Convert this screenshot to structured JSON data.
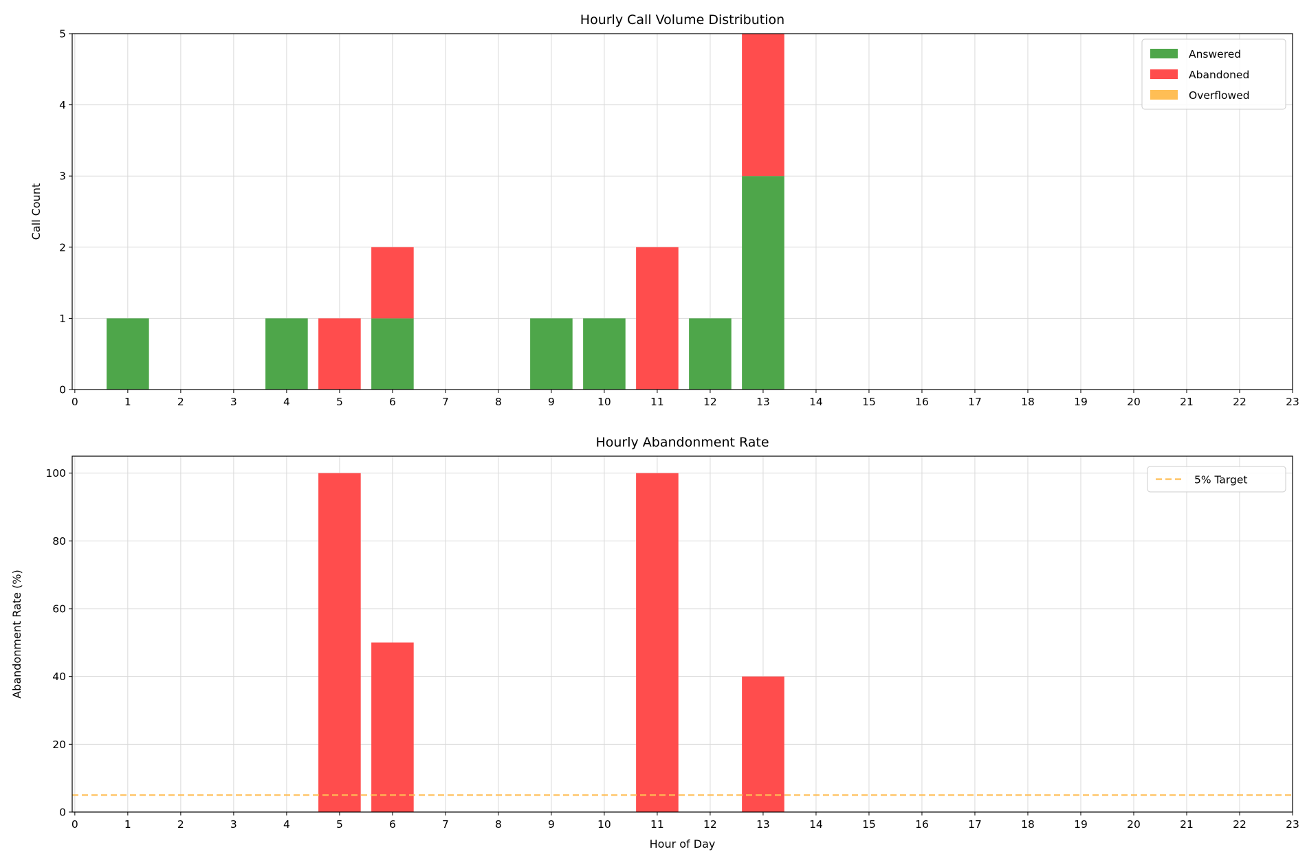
{
  "chart_data": [
    {
      "type": "bar",
      "stacked": true,
      "title": "Hourly Call Volume Distribution",
      "xlabel": "",
      "ylabel": "Call Count",
      "x": [
        0,
        1,
        2,
        3,
        4,
        5,
        6,
        7,
        8,
        9,
        10,
        11,
        12,
        13,
        14,
        15,
        16,
        17,
        18,
        19,
        20,
        21,
        22,
        23
      ],
      "xlim": [
        -0.05,
        23
      ],
      "ylim": [
        0,
        5
      ],
      "yticks": [
        0,
        1,
        2,
        3,
        4,
        5
      ],
      "grid": true,
      "legend_position": "top-right",
      "series": [
        {
          "name": "Answered",
          "color": "#4ea64a",
          "values": [
            0,
            1,
            0,
            0,
            1,
            0,
            1,
            0,
            0,
            1,
            1,
            0,
            1,
            3,
            0,
            0,
            0,
            0,
            0,
            0,
            0,
            0,
            0,
            0
          ]
        },
        {
          "name": "Abandoned",
          "color": "#ff4d4d",
          "values": [
            0,
            0,
            0,
            0,
            0,
            1,
            1,
            0,
            0,
            0,
            0,
            2,
            0,
            2,
            0,
            0,
            0,
            0,
            0,
            0,
            0,
            0,
            0,
            0
          ]
        },
        {
          "name": "Overflowed",
          "color": "#ffbe55",
          "values": [
            0,
            0,
            0,
            0,
            0,
            0,
            0,
            0,
            0,
            0,
            0,
            0,
            0,
            0,
            0,
            0,
            0,
            0,
            0,
            0,
            0,
            0,
            0,
            0
          ]
        }
      ]
    },
    {
      "type": "bar",
      "title": "Hourly Abandonment Rate",
      "xlabel": "Hour of Day",
      "ylabel": "Abandonment Rate (%)",
      "x": [
        0,
        1,
        2,
        3,
        4,
        5,
        6,
        7,
        8,
        9,
        10,
        11,
        12,
        13,
        14,
        15,
        16,
        17,
        18,
        19,
        20,
        21,
        22,
        23
      ],
      "xlim": [
        -0.05,
        23
      ],
      "ylim": [
        0,
        105
      ],
      "yticks": [
        0,
        20,
        40,
        60,
        80,
        100
      ],
      "grid": true,
      "legend_position": "top-right",
      "bar_color": "#ff4d4d",
      "values": [
        0,
        0,
        0,
        0,
        0,
        100,
        50,
        0,
        0,
        0,
        0,
        100,
        0,
        40,
        0,
        0,
        0,
        0,
        0,
        0,
        0,
        0,
        0,
        0
      ],
      "reference_line": {
        "name": "5% Target",
        "value": 5,
        "color": "#ffbe55",
        "style": "dashed"
      }
    }
  ]
}
